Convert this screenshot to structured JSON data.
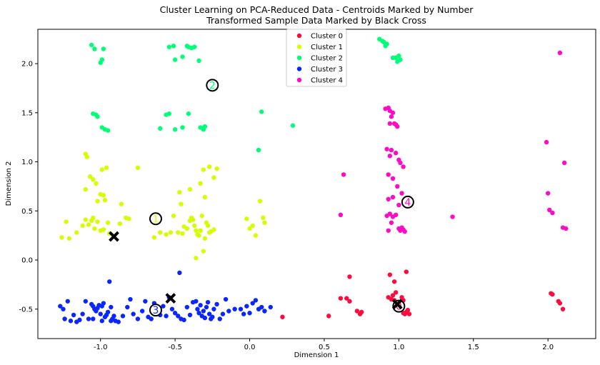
{
  "chart_data": {
    "type": "scatter",
    "title": "Cluster Learning on PCA-Reduced Data - Centroids Marked by Number",
    "subtitle": "Transformed Sample Data Marked by Black Cross",
    "xlabel": "Dimension 1",
    "ylabel": "Dimension 2",
    "xlim": [
      -1.42,
      2.32
    ],
    "ylim": [
      -0.8,
      2.35
    ],
    "xticks": [
      "-1.0",
      "-0.5",
      "0.0",
      "0.5",
      "1.0",
      "1.5",
      "2.0"
    ],
    "yticks": [
      "-0.5",
      "0.0",
      "0.5",
      "1.0",
      "1.5",
      "2.0"
    ],
    "grid": false,
    "legend_position": "top-center",
    "series": [
      {
        "name": "Cluster 0",
        "color": "#ff0a3c",
        "points": [
          [
            0.22,
            -0.58
          ],
          [
            0.53,
            -0.57
          ],
          [
            0.61,
            -0.39
          ],
          [
            0.65,
            -0.39
          ],
          [
            0.67,
            -0.17
          ],
          [
            0.67,
            -0.42
          ],
          [
            0.72,
            -0.52
          ],
          [
            0.74,
            -0.55
          ],
          [
            0.75,
            -0.53
          ],
          [
            0.93,
            -0.38
          ],
          [
            0.94,
            -0.15
          ],
          [
            0.95,
            -0.4
          ],
          [
            0.96,
            -0.36
          ],
          [
            0.97,
            -0.41
          ],
          [
            0.98,
            -0.43
          ],
          [
            0.99,
            -0.48
          ],
          [
            1.0,
            -0.46
          ],
          [
            1.01,
            -0.5
          ],
          [
            1.02,
            -0.38
          ],
          [
            1.03,
            -0.54
          ],
          [
            1.04,
            -0.55
          ],
          [
            1.05,
            -0.53
          ],
          [
            1.06,
            -0.51
          ],
          [
            1.07,
            -0.55
          ],
          [
            1.05,
            -0.12
          ],
          [
            1.03,
            -0.41
          ],
          [
            0.97,
            -0.22
          ],
          [
            0.98,
            -0.33
          ],
          [
            2.02,
            -0.34
          ],
          [
            2.03,
            -0.35
          ],
          [
            2.07,
            -0.42
          ],
          [
            2.08,
            -0.44
          ],
          [
            2.1,
            -0.5
          ]
        ]
      },
      {
        "name": "Cluster 1",
        "color": "#d4ff00",
        "points": [
          [
            -1.26,
            0.23
          ],
          [
            -1.23,
            0.39
          ],
          [
            -1.21,
            0.22
          ],
          [
            -1.16,
            0.28
          ],
          [
            -1.12,
            0.35
          ],
          [
            -1.1,
            0.41
          ],
          [
            -1.08,
            0.36
          ],
          [
            -1.06,
            0.4
          ],
          [
            -1.05,
            0.43
          ],
          [
            -1.04,
            0.32
          ],
          [
            -1.02,
            0.39
          ],
          [
            -1.0,
            0.3
          ],
          [
            -0.98,
            0.31
          ],
          [
            -0.95,
            0.38
          ],
          [
            -0.94,
            0.27
          ],
          [
            -0.91,
            0.24
          ],
          [
            -0.87,
            0.37
          ],
          [
            -0.83,
            0.43
          ],
          [
            -1.1,
            1.08
          ],
          [
            -1.09,
            1.05
          ],
          [
            -1.07,
            0.85
          ],
          [
            -1.05,
            0.82
          ],
          [
            -1.03,
            0.78
          ],
          [
            -1.02,
            0.6
          ],
          [
            -1.0,
            0.67
          ],
          [
            -0.98,
            0.66
          ],
          [
            -0.97,
            0.61
          ],
          [
            -0.99,
            0.92
          ],
          [
            -0.96,
            0.94
          ],
          [
            -1.1,
            0.72
          ],
          [
            -0.86,
            0.57
          ],
          [
            -0.81,
            0.42
          ],
          [
            -0.75,
            0.94
          ],
          [
            -0.64,
            0.23
          ],
          [
            -0.6,
            0.28
          ],
          [
            -0.56,
            0.26
          ],
          [
            -0.53,
            0.28
          ],
          [
            -0.51,
            0.45
          ],
          [
            -0.48,
            0.28
          ],
          [
            -0.46,
            0.57
          ],
          [
            -0.45,
            0.27
          ],
          [
            -0.44,
            0.34
          ],
          [
            -0.42,
            0.32
          ],
          [
            -0.4,
            0.4
          ],
          [
            -0.39,
            0.43
          ],
          [
            -0.38,
            0.41
          ],
          [
            -0.37,
            0.35
          ],
          [
            -0.36,
            0.3
          ],
          [
            -0.35,
            0.26
          ],
          [
            -0.34,
            0.25
          ],
          [
            -0.33,
            0.3
          ],
          [
            -0.32,
            0.45
          ],
          [
            -0.31,
            0.09
          ],
          [
            -0.3,
            0.22
          ],
          [
            -0.29,
            0.38
          ],
          [
            -0.28,
            0.35
          ],
          [
            -0.27,
            0.28
          ],
          [
            -0.26,
            0.29
          ],
          [
            -0.24,
            0.31
          ],
          [
            -0.3,
            0.64
          ],
          [
            -0.33,
            0.78
          ],
          [
            -0.31,
            0.92
          ],
          [
            -0.27,
            0.95
          ],
          [
            -0.24,
            0.84
          ],
          [
            -0.22,
            0.93
          ],
          [
            -0.4,
            0.72
          ],
          [
            -0.47,
            0.69
          ],
          [
            -0.36,
            0.02
          ],
          [
            -0.02,
            0.42
          ],
          [
            -0.0,
            0.32
          ],
          [
            0.02,
            0.35
          ],
          [
            0.04,
            0.25
          ],
          [
            0.07,
            0.6
          ],
          [
            0.09,
            0.43
          ],
          [
            0.1,
            0.38
          ]
        ]
      },
      {
        "name": "Cluster 2",
        "color": "#00ff77",
        "points": [
          [
            -1.06,
            2.19
          ],
          [
            -1.04,
            2.15
          ],
          [
            -1.0,
            2.01
          ],
          [
            -0.99,
            2.04
          ],
          [
            -0.98,
            2.15
          ],
          [
            -1.05,
            1.49
          ],
          [
            -1.03,
            1.48
          ],
          [
            -1.02,
            1.46
          ],
          [
            -0.99,
            1.35
          ],
          [
            -0.97,
            1.33
          ],
          [
            -0.95,
            1.32
          ],
          [
            -0.54,
            2.17
          ],
          [
            -0.51,
            2.18
          ],
          [
            -0.5,
            2.04
          ],
          [
            -0.45,
            2.07
          ],
          [
            -0.42,
            2.18
          ],
          [
            -0.41,
            2.17
          ],
          [
            -0.39,
            2.16
          ],
          [
            -0.37,
            2.17
          ],
          [
            -0.34,
            2.03
          ],
          [
            -0.56,
            1.48
          ],
          [
            -0.54,
            1.49
          ],
          [
            -0.5,
            1.33
          ],
          [
            -0.45,
            1.35
          ],
          [
            -0.41,
            1.49
          ],
          [
            -0.33,
            1.35
          ],
          [
            -0.31,
            1.33
          ],
          [
            -0.3,
            1.36
          ],
          [
            -0.6,
            1.34
          ],
          [
            0.06,
            1.12
          ],
          [
            0.08,
            1.51
          ],
          [
            0.29,
            1.37
          ],
          [
            0.87,
            2.25
          ],
          [
            0.89,
            2.23
          ],
          [
            0.9,
            2.22
          ],
          [
            0.91,
            2.18
          ],
          [
            0.92,
            2.2
          ],
          [
            0.96,
            2.06
          ],
          [
            0.98,
            2.06
          ],
          [
            1.0,
            2.08
          ],
          [
            0.99,
            2.02
          ],
          [
            1.01,
            2.04
          ]
        ]
      },
      {
        "name": "Cluster 3",
        "color": "#0a26ff",
        "points": [
          [
            -1.27,
            -0.47
          ],
          [
            -1.25,
            -0.5
          ],
          [
            -1.24,
            -0.6
          ],
          [
            -1.22,
            -0.42
          ],
          [
            -1.2,
            -0.62
          ],
          [
            -1.18,
            -0.56
          ],
          [
            -1.16,
            -0.63
          ],
          [
            -1.14,
            -0.61
          ],
          [
            -1.12,
            -0.55
          ],
          [
            -1.1,
            -0.42
          ],
          [
            -1.08,
            -0.6
          ],
          [
            -1.06,
            -0.45
          ],
          [
            -1.05,
            -0.47
          ],
          [
            -1.04,
            -0.5
          ],
          [
            -1.03,
            -0.52
          ],
          [
            -1.02,
            -0.49
          ],
          [
            -1.01,
            -0.46
          ],
          [
            -1.0,
            -0.55
          ],
          [
            -0.99,
            -0.47
          ],
          [
            -0.98,
            -0.44
          ],
          [
            -0.97,
            -0.58
          ],
          [
            -0.96,
            -0.56
          ],
          [
            -0.95,
            -0.53
          ],
          [
            -0.94,
            -0.22
          ],
          [
            -0.93,
            -0.48
          ],
          [
            -0.92,
            -0.6
          ],
          [
            -0.91,
            -0.57
          ],
          [
            -0.9,
            -0.62
          ],
          [
            -0.88,
            -0.63
          ],
          [
            -0.85,
            -0.57
          ],
          [
            -0.82,
            -0.48
          ],
          [
            -0.8,
            -0.4
          ],
          [
            -0.78,
            -0.55
          ],
          [
            -0.75,
            -0.6
          ],
          [
            -0.72,
            -0.52
          ],
          [
            -0.7,
            -0.42
          ],
          [
            -0.68,
            -0.58
          ],
          [
            -0.66,
            -0.6
          ],
          [
            -0.64,
            -0.44
          ],
          [
            -0.62,
            -0.51
          ],
          [
            -0.6,
            -0.56
          ],
          [
            -0.58,
            -0.47
          ],
          [
            -0.56,
            -0.57
          ],
          [
            -0.54,
            -0.38
          ],
          [
            -0.52,
            -0.5
          ],
          [
            -0.5,
            -0.54
          ],
          [
            -0.48,
            -0.57
          ],
          [
            -0.47,
            -0.13
          ],
          [
            -0.46,
            -0.6
          ],
          [
            -0.44,
            -0.61
          ],
          [
            -0.42,
            -0.48
          ],
          [
            -0.4,
            -0.56
          ],
          [
            -0.38,
            -0.43
          ],
          [
            -0.36,
            -0.42
          ],
          [
            -0.35,
            -0.5
          ],
          [
            -0.34,
            -0.54
          ],
          [
            -0.33,
            -0.46
          ],
          [
            -0.32,
            -0.57
          ],
          [
            -0.31,
            -0.52
          ],
          [
            -0.3,
            -0.59
          ],
          [
            -0.29,
            -0.48
          ],
          [
            -0.28,
            -0.43
          ],
          [
            -0.27,
            -0.55
          ],
          [
            -0.26,
            -0.6
          ],
          [
            -0.25,
            -0.58
          ],
          [
            -0.24,
            -0.5
          ],
          [
            -0.22,
            -0.45
          ],
          [
            -0.2,
            -0.6
          ],
          [
            -0.18,
            -0.55
          ],
          [
            -0.16,
            -0.4
          ],
          [
            -0.14,
            -0.52
          ],
          [
            -0.1,
            -0.5
          ],
          [
            -0.06,
            -0.5
          ],
          [
            -0.04,
            -0.55
          ],
          [
            -0.02,
            -0.47
          ],
          [
            0.0,
            -0.54
          ],
          [
            0.02,
            -0.44
          ],
          [
            0.04,
            -0.41
          ],
          [
            0.06,
            -0.5
          ],
          [
            0.08,
            -0.48
          ],
          [
            0.1,
            -0.52
          ],
          [
            0.14,
            -0.48
          ],
          [
            -1.05,
            -0.6
          ],
          [
            -0.99,
            -0.62
          ],
          [
            -0.93,
            -0.62
          ]
        ]
      },
      {
        "name": "Cluster 4",
        "color": "#ff0ac6",
        "points": [
          [
            0.61,
            0.46
          ],
          [
            0.63,
            0.87
          ],
          [
            0.91,
            1.54
          ],
          [
            0.93,
            1.55
          ],
          [
            0.94,
            1.52
          ],
          [
            0.96,
            1.5
          ],
          [
            0.95,
            1.46
          ],
          [
            0.94,
            1.39
          ],
          [
            0.97,
            1.39
          ],
          [
            0.98,
            1.38
          ],
          [
            0.99,
            1.36
          ],
          [
            0.92,
            1.13
          ],
          [
            0.95,
            1.12
          ],
          [
            0.98,
            1.09
          ],
          [
            0.94,
            1.06
          ],
          [
            1.0,
            1.02
          ],
          [
            1.01,
            0.99
          ],
          [
            1.03,
            0.95
          ],
          [
            0.93,
            0.87
          ],
          [
            0.96,
            0.83
          ],
          [
            0.99,
            0.75
          ],
          [
            1.02,
            0.68
          ],
          [
            0.96,
            0.64
          ],
          [
            0.93,
            0.62
          ],
          [
            1.0,
            0.56
          ],
          [
            0.92,
            0.45
          ],
          [
            0.94,
            0.47
          ],
          [
            0.96,
            0.44
          ],
          [
            0.98,
            0.46
          ],
          [
            0.95,
            0.38
          ],
          [
            1.0,
            0.32
          ],
          [
            1.01,
            0.3
          ],
          [
            1.02,
            0.33
          ],
          [
            1.03,
            0.31
          ],
          [
            1.04,
            0.29
          ],
          [
            0.93,
            0.3
          ],
          [
            1.36,
            0.44
          ],
          [
            1.99,
            1.2
          ],
          [
            2.0,
            0.68
          ],
          [
            2.01,
            0.51
          ],
          [
            2.03,
            0.48
          ],
          [
            2.08,
            2.11
          ],
          [
            2.1,
            0.33
          ],
          [
            2.11,
            0.99
          ],
          [
            2.12,
            0.32
          ]
        ]
      }
    ],
    "centroids": [
      {
        "label": "0",
        "x": 1.0,
        "y": -0.47,
        "color": "#ff0a3c"
      },
      {
        "label": "1",
        "x": -0.63,
        "y": 0.42,
        "color": "#d4ff00"
      },
      {
        "label": "2",
        "x": -0.25,
        "y": 1.78,
        "color": "#00ff77"
      },
      {
        "label": "3",
        "x": -0.63,
        "y": -0.51,
        "color": "#0a26ff"
      },
      {
        "label": "4",
        "x": 1.06,
        "y": 0.59,
        "color": "#ff0ac6"
      }
    ],
    "samples": [
      {
        "x": -0.91,
        "y": 0.24
      },
      {
        "x": -0.53,
        "y": -0.39
      },
      {
        "x": 0.99,
        "y": -0.45
      }
    ]
  }
}
